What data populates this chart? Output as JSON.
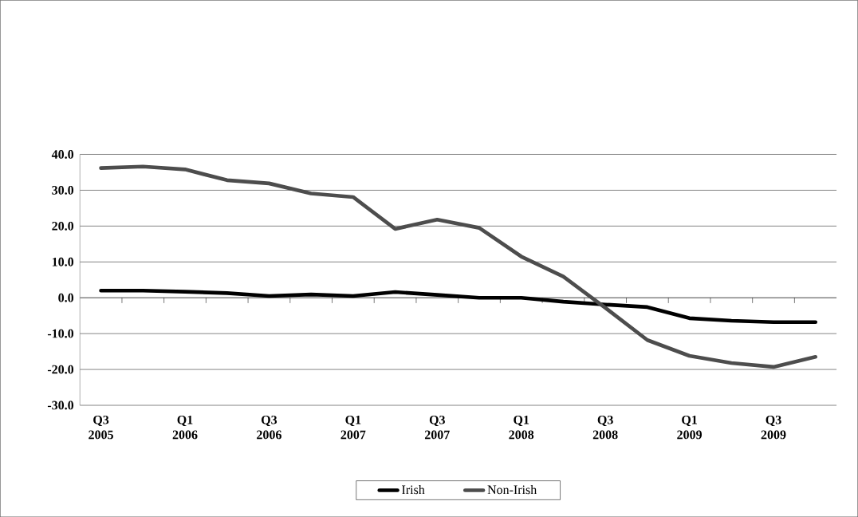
{
  "chart_data": {
    "type": "line",
    "categories": [
      "Q3 2005",
      null,
      "Q1 2006",
      null,
      "Q3 2006",
      null,
      "Q1 2007",
      null,
      "Q3 2007",
      null,
      "Q1 2008",
      null,
      "Q3 2008",
      null,
      "Q1 2009",
      null,
      "Q3 2009",
      null
    ],
    "series": [
      {
        "name": "Irish",
        "color": "#000000",
        "values": [
          2.0,
          2.0,
          1.7,
          1.3,
          0.5,
          0.9,
          0.5,
          1.6,
          0.8,
          0.0,
          0.0,
          -1.1,
          -1.9,
          -2.6,
          -5.7,
          -6.4,
          -6.8,
          -6.8
        ]
      },
      {
        "name": "Non-Irish",
        "color": "#4d4d4d",
        "values": [
          36.2,
          36.6,
          35.8,
          32.8,
          31.9,
          29.1,
          28.1,
          19.2,
          21.8,
          19.5,
          11.5,
          5.9,
          -2.8,
          -11.8,
          -16.2,
          -18.2,
          -19.3,
          -16.5
        ]
      }
    ],
    "ylim": [
      -30,
      40
    ],
    "yticks": [
      {
        "value": -30,
        "label": "-30.0"
      },
      {
        "value": -20,
        "label": "-20.0"
      },
      {
        "value": -10,
        "label": "-10.0"
      },
      {
        "value": 0,
        "label": "0.0"
      },
      {
        "value": 10,
        "label": "10.0"
      },
      {
        "value": 20,
        "label": "20.0"
      },
      {
        "value": 30,
        "label": "30.0"
      },
      {
        "value": 40,
        "label": "40.0"
      }
    ],
    "grid": "y",
    "legend": "bottom",
    "marker": "none",
    "line_style": "solid"
  }
}
